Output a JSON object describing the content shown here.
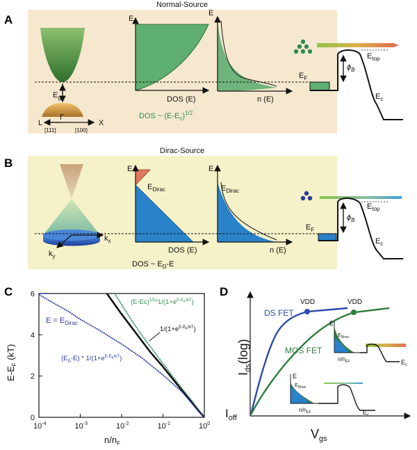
{
  "colors": {
    "panel_bg_A": "#f6e8cf",
    "panel_bg_B": "#f5f1c8",
    "green": "#2e8b57",
    "green_fill": "#5fae72",
    "blue": "#2a82c9",
    "blue_dark": "#2b3a9c",
    "orange": "#e07a5f",
    "black": "#111111"
  },
  "panelA": {
    "letter": "A",
    "title": "Normal-Source",
    "band": {
      "eg": "E",
      "eg_sub": "g",
      "L": "L",
      "Gamma": "Γ",
      "X": "X",
      "dir111": "[111]",
      "dir100": "[100]"
    },
    "dos": {
      "E": "E",
      "xlabel": "DOS (E)"
    },
    "dos_formula": {
      "main": "DOS ~ (E-E",
      "sub": "c",
      "end": ")",
      "sup": "1/2"
    },
    "carrier": {
      "E": "E",
      "xlabel": "n (E)"
    },
    "barrier": {
      "ef": "E",
      "ef_sub": "F",
      "etop": "E",
      "etop_sub": "top",
      "phi": "ϕ",
      "phi_sub": "B",
      "ec": "E",
      "ec_sub": "c"
    }
  },
  "panelB": {
    "letter": "B",
    "title": "Dirac-Source",
    "cone": {
      "kx": "k",
      "kx_sub": "x",
      "ky": "k",
      "ky_sub": "y"
    },
    "dos": {
      "E": "E",
      "edirac": "E",
      "edirac_sub": "Dirac",
      "xlabel": "DOS (E)"
    },
    "dos_formula": {
      "main": "DOS ~ E",
      "sub": "D",
      "end": "-E"
    },
    "carrier": {
      "E": "E",
      "edirac": "E",
      "edirac_sub": "Dirac",
      "xlabel": "n (E)"
    },
    "barrier": {
      "ef": "E",
      "ef_sub": "F",
      "etop": "E",
      "etop_sub": "top",
      "phi": "ϕ",
      "phi_sub": "B",
      "ec": "E",
      "ec_sub": "c"
    }
  },
  "panelC": {
    "letter": "C",
    "ylabel": "E-E",
    "ylabel_sub": "F",
    "ylabel_unit": " (kT)",
    "xlabel": "n/n",
    "xlabel_sub": "F",
    "label_dirac": {
      "pre": "E = E",
      "sub": "Dirac"
    },
    "label_green": {
      "a": "(E-Ec)",
      "a_sup": "1/2",
      "b": "*1/(1+e",
      "b_sup": "E-E",
      "b_sup_sub": "F",
      "b_sup_end": "/kT",
      "c": ")"
    },
    "label_black": {
      "a": "1/(1+e",
      "a_sup": "E-E",
      "a_sup_sub": "F",
      "a_sup_end": "/kT",
      "c": ")"
    },
    "label_blue": {
      "a": "(E",
      "a_sub": "D",
      "b": "-E) * 1/(1+e",
      "b_sup": "E-E",
      "b_sup_sub": "F",
      "b_sup_end": "/kT",
      "c": ")"
    }
  },
  "panelD": {
    "letter": "D",
    "ylabel": "I",
    "ylabel_sub": "ds",
    "ylabel_end": "(log)",
    "xlabel": "V",
    "xlabel_sub": "gs",
    "ioff": "I",
    "ioff_sub": "off",
    "ds_label": "DS FET",
    "mos_label": "MOS FET",
    "vdd1": "VDD",
    "vdd2": "VDD",
    "inset1": {
      "E": "E",
      "edirac": "E",
      "edirac_sub": "Dirac",
      "nnef": "n/n",
      "nnef_sub": "EF",
      "ec": "E",
      "ec_sub": "c"
    },
    "inset2": {
      "E": "E",
      "edirac": "E",
      "edirac_sub": "Dirac",
      "nnef": "n/n",
      "nnef_sub": "EF",
      "ec": "E",
      "ec_sub": "c"
    }
  },
  "chart_data": {
    "type": "line",
    "xlabel": "n/nF",
    "ylabel": "E-EF (kT)",
    "xscale": "log",
    "xlim": [
      0.0001,
      1
    ],
    "ylim": [
      0,
      6
    ],
    "xticks": [
      0.0001,
      0.001,
      0.01,
      0.1,
      1
    ],
    "xtick_labels": [
      {
        "base": "10",
        "exp": "-4"
      },
      {
        "base": "10",
        "exp": "-3"
      },
      {
        "base": "10",
        "exp": "-2"
      },
      {
        "base": "10",
        "exp": "-1"
      },
      {
        "base": "10",
        "exp": "0"
      }
    ],
    "yticks": [
      0,
      2,
      4,
      6
    ],
    "ytick_labels": [
      "0",
      "2",
      "4",
      "6"
    ],
    "series": [
      {
        "name": "(E-Ec)^1/2*1/(1+e^(E-EF/kT))",
        "color": "#2e8b57",
        "x": [
          0.0068,
          0.015,
          0.03,
          0.06,
          0.12,
          0.25,
          0.5,
          0.8,
          1.0
        ],
        "y": [
          6,
          4.9,
          4.0,
          3.2,
          2.4,
          1.55,
          0.8,
          0.25,
          0
        ]
      },
      {
        "name": "1/(1+e^(E-EF/kT))",
        "color": "#111111",
        "x": [
          0.0044,
          0.01,
          0.02,
          0.05,
          0.1,
          0.2,
          0.4,
          0.7,
          1.0
        ],
        "y": [
          6,
          5.0,
          4.2,
          3.15,
          2.45,
          1.7,
          0.95,
          0.35,
          0
        ]
      },
      {
        "name": "(ED-E) * 1/(1+e^(E-EF/kT))",
        "color": "#2b3a9c",
        "x": [
          0.0001,
          0.0002,
          0.0005,
          0.001,
          0.003,
          0.01,
          0.03,
          0.1,
          0.3,
          0.6,
          1.0
        ],
        "y": [
          5.95,
          5.6,
          5.15,
          4.75,
          4.2,
          3.55,
          2.9,
          2.05,
          1.2,
          0.5,
          0
        ]
      }
    ],
    "reference_line": {
      "name": "E = EDirac",
      "x_start": 0.0001,
      "y": 6
    }
  }
}
